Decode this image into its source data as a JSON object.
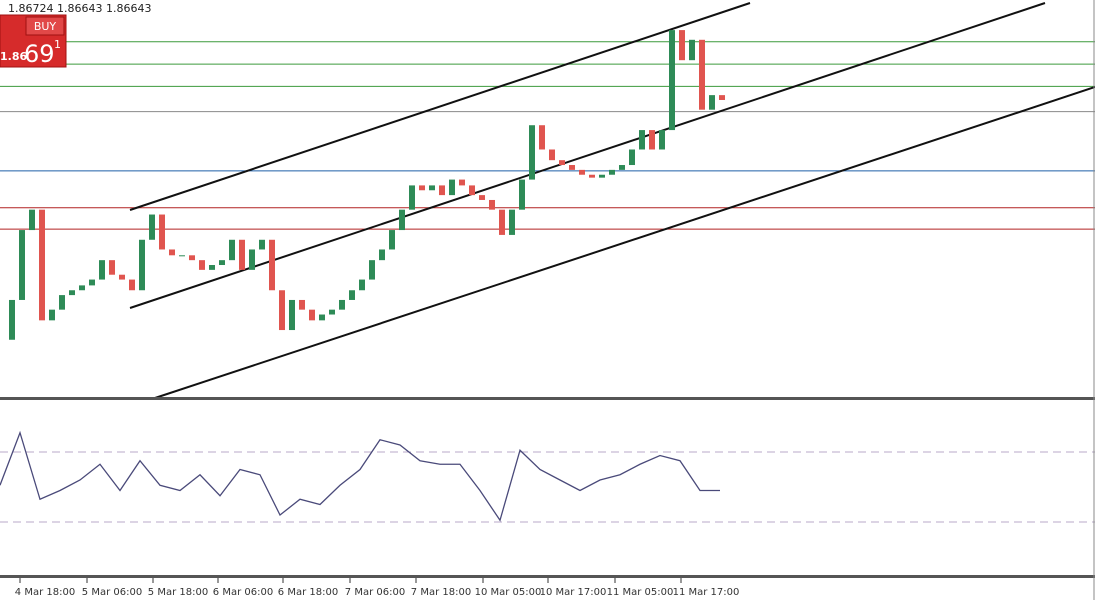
{
  "header": {
    "quote": "1.86724 1.86643 1.86643"
  },
  "buy_panel": {
    "label": "BUY",
    "price_prefix": "1.86",
    "price_big": "69",
    "price_super": "1"
  },
  "x_labels": [
    "4 Mar 18:00",
    "5 Mar 06:00",
    "5 Mar 18:00",
    "6 Mar 06:00",
    "6 Mar 18:00",
    "7 Mar 06:00",
    "7 Mar 18:00",
    "10 Mar 05:00",
    "10 Mar 17:00",
    "11 Mar 05:00",
    "11 Mar 17:00"
  ],
  "chart_data": [
    {
      "type": "candlestick",
      "up_color": "#2e8b57",
      "down_color": "#e0554f",
      "ylim": [
        1.835,
        1.876
      ],
      "values": [
        1.841,
        1.8451,
        1.8523,
        1.8544,
        1.843,
        1.8441,
        1.8456,
        1.8461,
        1.8466,
        1.8472,
        1.8492,
        1.8477,
        1.8472,
        1.8461,
        1.8513,
        1.8539,
        1.8503,
        1.8497,
        1.8497,
        1.8492,
        1.8482,
        1.8487,
        1.8492,
        1.8513,
        1.8482,
        1.8503,
        1.8513,
        1.8461,
        1.842,
        1.8451,
        1.8441,
        1.843,
        1.8436,
        1.8441,
        1.8451,
        1.8461,
        1.8472,
        1.8492,
        1.8503,
        1.8523,
        1.8544,
        1.8569,
        1.8564,
        1.8569,
        1.8559,
        1.8575,
        1.8569,
        1.8559,
        1.8554,
        1.8544,
        1.8518,
        1.8544,
        1.8575,
        1.8631,
        1.8606,
        1.8595,
        1.859,
        1.8585,
        1.858,
        1.8577,
        1.858,
        1.8585,
        1.859,
        1.8606,
        1.8626,
        1.8606,
        1.8626,
        1.8729,
        1.8698,
        1.8719,
        1.8647,
        1.8662,
        1.8657
      ],
      "levels": [
        {
          "value": 1.8717,
          "color": "#3c9a3c"
        },
        {
          "value": 1.8694,
          "color": "#3c9a3c"
        },
        {
          "value": 1.8671,
          "color": "#3c9a3c"
        },
        {
          "value": 1.8645,
          "color": "#8a8a8a"
        },
        {
          "value": 1.8584,
          "color": "#1f5fa8"
        },
        {
          "value": 1.8546,
          "color": "#b22222"
        },
        {
          "value": 1.8524,
          "color": "#b22222"
        }
      ]
    },
    {
      "type": "line",
      "color": "#4a4a7a",
      "ylim": [
        0,
        100
      ],
      "levels": [
        30,
        70
      ],
      "values": [
        51,
        81,
        43,
        48,
        54,
        63,
        48,
        65,
        51,
        48,
        57,
        45,
        60,
        57,
        34,
        43,
        40,
        51,
        60,
        77,
        74,
        65,
        63,
        63,
        48,
        31,
        71,
        60,
        54,
        48,
        54,
        57,
        63,
        68,
        65,
        48,
        48
      ]
    }
  ]
}
